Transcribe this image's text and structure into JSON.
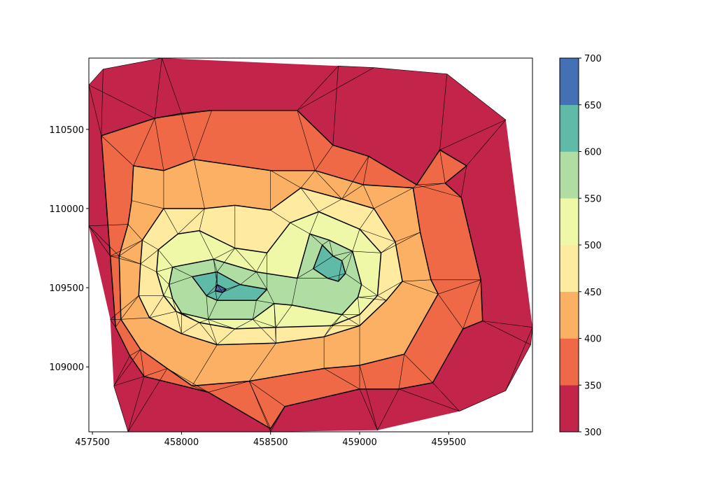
{
  "chart_data": {
    "type": "contour",
    "title": "",
    "xlabel": "",
    "ylabel": "",
    "xlim": [
      457480,
      459970
    ],
    "ylim": [
      108590,
      110950
    ],
    "x_ticks": [
      {
        "value": 457500,
        "label": "457500"
      },
      {
        "value": 458000,
        "label": "458000"
      },
      {
        "value": 458500,
        "label": "458500"
      },
      {
        "value": 459000,
        "label": "459000"
      },
      {
        "value": 459500,
        "label": "459500"
      }
    ],
    "y_ticks": [
      {
        "value": 109000,
        "label": "109000"
      },
      {
        "value": 109500,
        "label": "109500"
      },
      {
        "value": 110000,
        "label": "110000"
      },
      {
        "value": 110500,
        "label": "110500"
      }
    ],
    "grid": false,
    "colorbar": {
      "placement": "right",
      "levels": [
        300,
        350,
        400,
        450,
        500,
        550,
        600,
        650,
        700
      ],
      "labels": [
        "300",
        "350",
        "400",
        "450",
        "500",
        "550",
        "600",
        "650",
        "700"
      ],
      "colors": [
        "#c2244a",
        "#f06947",
        "#fcb064",
        "#feeb9f",
        "#eef8a6",
        "#b0dea2",
        "#5fbaa8",
        "#4471b6"
      ]
    },
    "bands": [
      {
        "range": [
          300,
          350
        ],
        "color": "#c2244a",
        "outline": [
          [
            457480,
            110780
          ],
          [
            457560,
            110880
          ],
          [
            457890,
            110950
          ],
          [
            458880,
            110900
          ],
          [
            459080,
            110890
          ],
          [
            459490,
            110850
          ],
          [
            459820,
            110560
          ],
          [
            459970,
            109250
          ],
          [
            459960,
            109140
          ],
          [
            459820,
            108850
          ],
          [
            459560,
            108720
          ],
          [
            459100,
            108600
          ],
          [
            458500,
            108590
          ],
          [
            457700,
            108590
          ],
          [
            457620,
            108880
          ],
          [
            457600,
            109300
          ],
          [
            457480,
            109890
          ]
        ]
      },
      {
        "range": [
          350,
          400
        ],
        "color": "#f06947",
        "outline": [
          [
            457550,
            110460
          ],
          [
            457850,
            110570
          ],
          [
            458000,
            110600
          ],
          [
            458170,
            110620
          ],
          [
            458650,
            110620
          ],
          [
            458850,
            110400
          ],
          [
            459050,
            110330
          ],
          [
            459320,
            110150
          ],
          [
            459450,
            110370
          ],
          [
            459600,
            110270
          ],
          [
            459480,
            110160
          ],
          [
            459570,
            110070
          ],
          [
            459680,
            109550
          ],
          [
            459690,
            109290
          ],
          [
            459580,
            109240
          ],
          [
            459410,
            108900
          ],
          [
            459220,
            108860
          ],
          [
            459000,
            108860
          ],
          [
            458580,
            108750
          ],
          [
            458500,
            108610
          ],
          [
            458150,
            108840
          ],
          [
            457790,
            108940
          ],
          [
            457710,
            109070
          ],
          [
            457630,
            109250
          ],
          [
            457600,
            109700
          ]
        ]
      },
      {
        "range": [
          400,
          450
        ],
        "color": "#fcb064",
        "outline": [
          [
            457730,
            110270
          ],
          [
            457900,
            110240
          ],
          [
            458070,
            110310
          ],
          [
            458500,
            110240
          ],
          [
            458750,
            110240
          ],
          [
            459020,
            110150
          ],
          [
            459300,
            110130
          ],
          [
            459340,
            109850
          ],
          [
            459400,
            109550
          ],
          [
            459440,
            109460
          ],
          [
            459250,
            109080
          ],
          [
            459000,
            109010
          ],
          [
            458800,
            108990
          ],
          [
            458380,
            108910
          ],
          [
            458060,
            108880
          ],
          [
            457920,
            108990
          ],
          [
            457770,
            109110
          ],
          [
            457660,
            109300
          ],
          [
            457650,
            109700
          ],
          [
            457700,
            109900
          ],
          [
            457720,
            110050
          ]
        ]
      },
      {
        "range": [
          450,
          500
        ],
        "color": "#feeb9f",
        "outline": [
          [
            457900,
            110000
          ],
          [
            458130,
            110000
          ],
          [
            458300,
            110020
          ],
          [
            458500,
            109990
          ],
          [
            458670,
            110130
          ],
          [
            458900,
            110060
          ],
          [
            459080,
            110000
          ],
          [
            459200,
            109790
          ],
          [
            459240,
            109540
          ],
          [
            459150,
            109420
          ],
          [
            459000,
            109260
          ],
          [
            458800,
            109190
          ],
          [
            458530,
            109150
          ],
          [
            458200,
            109140
          ],
          [
            458000,
            109210
          ],
          [
            457820,
            109310
          ],
          [
            457760,
            109450
          ],
          [
            457770,
            109650
          ],
          [
            457780,
            109800
          ]
        ]
      },
      {
        "range": [
          500,
          550
        ],
        "color": "#eef8a6",
        "outline": [
          [
            457870,
            109740
          ],
          [
            457980,
            109840
          ],
          [
            458100,
            109860
          ],
          [
            458300,
            109750
          ],
          [
            458480,
            109720
          ],
          [
            458610,
            109910
          ],
          [
            458770,
            109980
          ],
          [
            459000,
            109870
          ],
          [
            459120,
            109720
          ],
          [
            459100,
            109450
          ],
          [
            459000,
            109330
          ],
          [
            458840,
            109260
          ],
          [
            458530,
            109250
          ],
          [
            458300,
            109240
          ],
          [
            458100,
            109280
          ],
          [
            457970,
            109350
          ],
          [
            457900,
            109450
          ],
          [
            457860,
            109600
          ]
        ]
      },
      {
        "range": [
          550,
          600
        ],
        "color": "#b0dea2",
        "outline": [
          [
            457950,
            109630
          ],
          [
            458180,
            109680
          ],
          [
            458420,
            109600
          ],
          [
            458650,
            109560
          ],
          [
            458720,
            109840
          ],
          [
            458830,
            109800
          ],
          [
            458960,
            109730
          ],
          [
            459010,
            109520
          ],
          [
            458990,
            109440
          ],
          [
            458900,
            109330
          ],
          [
            458620,
            109390
          ],
          [
            458520,
            109400
          ],
          [
            458400,
            109300
          ],
          [
            458150,
            109300
          ],
          [
            458000,
            109340
          ],
          [
            457950,
            109430
          ],
          [
            457930,
            109520
          ]
        ]
      },
      {
        "range": [
          600,
          650
        ],
        "color": "#5fbaa8",
        "outline": [
          [
            458060,
            109570
          ],
          [
            458200,
            109600
          ],
          [
            458330,
            109520
          ],
          [
            458480,
            109490
          ],
          [
            458420,
            109420
          ],
          [
            458200,
            109420
          ],
          [
            458140,
            109450
          ]
        ]
      },
      {
        "range": [
          600,
          650
        ],
        "color": "#5fbaa8",
        "outline": [
          [
            458790,
            109770
          ],
          [
            458850,
            109700
          ],
          [
            458900,
            109670
          ],
          [
            458920,
            109590
          ],
          [
            458880,
            109540
          ],
          [
            458820,
            109560
          ],
          [
            458740,
            109620
          ]
        ]
      },
      {
        "range": [
          650,
          700
        ],
        "color": "#4471b6",
        "outline": [
          [
            458200,
            109520
          ],
          [
            458250,
            109490
          ],
          [
            458230,
            109470
          ],
          [
            458190,
            109480
          ]
        ]
      }
    ]
  }
}
